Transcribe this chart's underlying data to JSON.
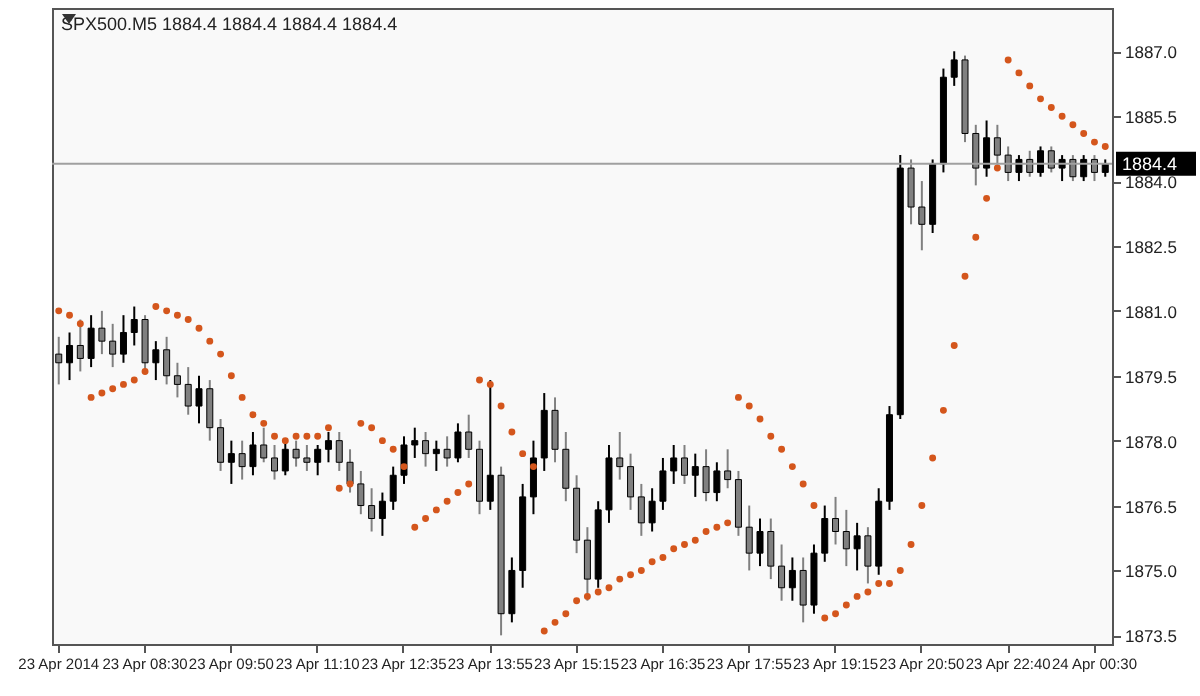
{
  "chart_data": {
    "type": "candlestick",
    "title": "SPX500.M5 1884.4 1884.4 1884.4 1884.4",
    "categories": [
      "23 Apr 2014",
      null,
      null,
      null,
      null,
      null,
      null,
      null,
      "23 Apr 08:30",
      null,
      null,
      null,
      null,
      null,
      null,
      null,
      "23 Apr 09:50",
      null,
      null,
      null,
      null,
      null,
      null,
      null,
      "23 Apr 11:10",
      null,
      null,
      null,
      null,
      null,
      null,
      null,
      "23 Apr 12:35",
      null,
      null,
      null,
      null,
      null,
      null,
      null,
      "23 Apr 13:55",
      null,
      null,
      null,
      null,
      null,
      null,
      null,
      "23 Apr 15:15",
      null,
      null,
      null,
      null,
      null,
      null,
      null,
      "23 Apr 16:35",
      null,
      null,
      null,
      null,
      null,
      null,
      null,
      "23 Apr 17:55",
      null,
      null,
      null,
      null,
      null,
      null,
      null,
      "23 Apr 19:15",
      null,
      null,
      null,
      null,
      null,
      null,
      null,
      "23 Apr 20:50",
      null,
      null,
      null,
      null,
      null,
      null,
      null,
      "23 Apr 22:40",
      null,
      null,
      null,
      null,
      null,
      null,
      null,
      "24 Apr 00:30",
      null
    ],
    "ohlc": [
      [
        1880.0,
        1880.4,
        1879.3,
        1879.8
      ],
      [
        1879.8,
        1880.5,
        1879.4,
        1880.2
      ],
      [
        1880.2,
        1880.8,
        1879.6,
        1879.9
      ],
      [
        1879.9,
        1880.9,
        1879.7,
        1880.6
      ],
      [
        1880.6,
        1881.0,
        1880.0,
        1880.3
      ],
      [
        1880.3,
        1880.7,
        1879.7,
        1880.0
      ],
      [
        1880.0,
        1880.9,
        1879.8,
        1880.5
      ],
      [
        1880.5,
        1881.1,
        1880.2,
        1880.8
      ],
      [
        1880.8,
        1880.9,
        1879.6,
        1879.8
      ],
      [
        1879.8,
        1880.3,
        1879.4,
        1880.1
      ],
      [
        1880.1,
        1880.4,
        1879.3,
        1879.5
      ],
      [
        1879.5,
        1879.8,
        1879.0,
        1879.3
      ],
      [
        1879.3,
        1879.7,
        1878.6,
        1878.8
      ],
      [
        1878.8,
        1879.5,
        1878.4,
        1879.2
      ],
      [
        1879.2,
        1879.4,
        1878.0,
        1878.3
      ],
      [
        1878.3,
        1878.5,
        1877.3,
        1877.5
      ],
      [
        1877.5,
        1878.0,
        1877.0,
        1877.7
      ],
      [
        1877.7,
        1878.0,
        1877.1,
        1877.4
      ],
      [
        1877.4,
        1878.2,
        1877.2,
        1877.9
      ],
      [
        1877.9,
        1878.3,
        1877.5,
        1877.6
      ],
      [
        1877.6,
        1877.9,
        1877.1,
        1877.3
      ],
      [
        1877.3,
        1878.0,
        1877.2,
        1877.8
      ],
      [
        1877.8,
        1878.0,
        1877.4,
        1877.6
      ],
      [
        1877.6,
        1877.9,
        1877.3,
        1877.5
      ],
      [
        1877.5,
        1877.9,
        1877.2,
        1877.8
      ],
      [
        1877.8,
        1878.2,
        1877.5,
        1878.0
      ],
      [
        1878.0,
        1878.2,
        1877.3,
        1877.5
      ],
      [
        1877.5,
        1877.8,
        1876.8,
        1877.0
      ],
      [
        1877.0,
        1877.3,
        1876.3,
        1876.5
      ],
      [
        1876.5,
        1876.9,
        1875.9,
        1876.2
      ],
      [
        1876.2,
        1876.8,
        1875.8,
        1876.6
      ],
      [
        1876.6,
        1877.4,
        1876.4,
        1877.2
      ],
      [
        1877.2,
        1878.1,
        1877.0,
        1877.9
      ],
      [
        1877.9,
        1878.3,
        1877.6,
        1878.0
      ],
      [
        1878.0,
        1878.2,
        1877.4,
        1877.7
      ],
      [
        1877.7,
        1878.0,
        1877.3,
        1877.8
      ],
      [
        1877.8,
        1878.1,
        1877.4,
        1877.6
      ],
      [
        1877.6,
        1878.4,
        1877.5,
        1878.2
      ],
      [
        1878.2,
        1878.6,
        1877.6,
        1877.8
      ],
      [
        1877.8,
        1878.0,
        1876.3,
        1876.6
      ],
      [
        1876.6,
        1879.4,
        1876.4,
        1877.2
      ],
      [
        1877.2,
        1877.4,
        1873.5,
        1874.0
      ],
      [
        1874.0,
        1875.3,
        1873.8,
        1875.0
      ],
      [
        1875.0,
        1877.0,
        1874.6,
        1876.7
      ],
      [
        1876.7,
        1878.0,
        1876.3,
        1877.6
      ],
      [
        1877.6,
        1879.1,
        1877.3,
        1878.7
      ],
      [
        1878.7,
        1879.0,
        1877.5,
        1877.8
      ],
      [
        1877.8,
        1878.2,
        1876.6,
        1876.9
      ],
      [
        1876.9,
        1877.2,
        1875.4,
        1875.7
      ],
      [
        1875.7,
        1876.0,
        1874.3,
        1874.8
      ],
      [
        1874.8,
        1876.6,
        1874.6,
        1876.4
      ],
      [
        1876.4,
        1877.9,
        1876.1,
        1877.6
      ],
      [
        1877.6,
        1878.2,
        1877.1,
        1877.4
      ],
      [
        1877.4,
        1877.7,
        1876.4,
        1876.7
      ],
      [
        1876.7,
        1877.0,
        1875.8,
        1876.1
      ],
      [
        1876.1,
        1876.9,
        1875.9,
        1876.6
      ],
      [
        1876.6,
        1877.6,
        1876.4,
        1877.3
      ],
      [
        1877.3,
        1877.9,
        1877.0,
        1877.6
      ],
      [
        1877.6,
        1877.9,
        1877.0,
        1877.2
      ],
      [
        1877.2,
        1877.7,
        1876.7,
        1877.4
      ],
      [
        1877.4,
        1877.8,
        1876.6,
        1876.8
      ],
      [
        1876.8,
        1877.5,
        1876.6,
        1877.3
      ],
      [
        1877.3,
        1877.8,
        1876.9,
        1877.1
      ],
      [
        1877.1,
        1877.3,
        1875.8,
        1876.0
      ],
      [
        1876.0,
        1876.5,
        1875.0,
        1875.4
      ],
      [
        1875.4,
        1876.2,
        1875.1,
        1875.9
      ],
      [
        1875.9,
        1876.2,
        1874.8,
        1875.1
      ],
      [
        1875.1,
        1875.6,
        1874.3,
        1874.6
      ],
      [
        1874.6,
        1875.3,
        1874.3,
        1875.0
      ],
      [
        1875.0,
        1875.3,
        1873.8,
        1874.2
      ],
      [
        1874.2,
        1875.6,
        1874.0,
        1875.4
      ],
      [
        1875.4,
        1876.5,
        1875.2,
        1876.2
      ],
      [
        1876.2,
        1876.7,
        1875.6,
        1875.9
      ],
      [
        1875.9,
        1876.4,
        1875.1,
        1875.5
      ],
      [
        1875.5,
        1876.1,
        1875.0,
        1875.8
      ],
      [
        1875.8,
        1876.0,
        1874.7,
        1875.1
      ],
      [
        1875.1,
        1876.9,
        1874.9,
        1876.6
      ],
      [
        1876.6,
        1878.8,
        1876.4,
        1878.6
      ],
      [
        1878.6,
        1884.6,
        1878.5,
        1884.3
      ],
      [
        1884.3,
        1884.5,
        1883.0,
        1883.4
      ],
      [
        1883.4,
        1884.0,
        1882.4,
        1883.0
      ],
      [
        1883.0,
        1884.5,
        1882.8,
        1884.4
      ],
      [
        1884.4,
        1886.6,
        1884.2,
        1886.4
      ],
      [
        1886.4,
        1887.0,
        1886.2,
        1886.8
      ],
      [
        1886.8,
        1886.9,
        1884.9,
        1885.1
      ],
      [
        1885.1,
        1885.3,
        1883.9,
        1884.3
      ],
      [
        1884.3,
        1885.4,
        1884.1,
        1885.0
      ],
      [
        1885.0,
        1885.3,
        1884.3,
        1884.6
      ],
      [
        1884.6,
        1884.8,
        1884.0,
        1884.2
      ],
      [
        1884.2,
        1884.6,
        1884.0,
        1884.5
      ],
      [
        1884.5,
        1884.7,
        1884.1,
        1884.2
      ],
      [
        1884.2,
        1884.8,
        1884.1,
        1884.7
      ],
      [
        1884.7,
        1884.8,
        1884.2,
        1884.3
      ],
      [
        1884.3,
        1884.6,
        1884.0,
        1884.5
      ],
      [
        1884.5,
        1884.6,
        1884.0,
        1884.1
      ],
      [
        1884.1,
        1884.6,
        1884.0,
        1884.5
      ],
      [
        1884.5,
        1884.6,
        1884.0,
        1884.2
      ],
      [
        1884.2,
        1884.5,
        1884.1,
        1884.4
      ]
    ],
    "colors": [
      "#808080",
      "#000000",
      "#808080",
      "#000000",
      "#808080",
      "#808080",
      "#000000",
      "#000000",
      "#808080",
      "#000000",
      "#808080",
      "#808080",
      "#808080",
      "#000000",
      "#808080",
      "#808080",
      "#000000",
      "#808080",
      "#000000",
      "#808080",
      "#808080",
      "#000000",
      "#808080",
      "#808080",
      "#000000",
      "#000000",
      "#808080",
      "#808080",
      "#808080",
      "#808080",
      "#000000",
      "#000000",
      "#000000",
      "#000000",
      "#808080",
      "#000000",
      "#808080",
      "#000000",
      "#808080",
      "#808080",
      "#000000",
      "#808080",
      "#000000",
      "#000000",
      "#000000",
      "#000000",
      "#808080",
      "#808080",
      "#808080",
      "#808080",
      "#000000",
      "#000000",
      "#808080",
      "#808080",
      "#808080",
      "#000000",
      "#000000",
      "#000000",
      "#808080",
      "#000000",
      "#808080",
      "#000000",
      "#808080",
      "#808080",
      "#808080",
      "#000000",
      "#808080",
      "#808080",
      "#000000",
      "#808080",
      "#000000",
      "#000000",
      "#808080",
      "#808080",
      "#000000",
      "#808080",
      "#000000",
      "#000000",
      "#000000",
      "#808080",
      "#808080",
      "#000000",
      "#000000",
      "#000000",
      "#808080",
      "#808080",
      "#000000",
      "#808080",
      "#808080",
      "#000000",
      "#808080",
      "#000000",
      "#808080",
      "#000000",
      "#808080",
      "#000000",
      "#808080",
      "#000000"
    ],
    "series": [
      {
        "type": "scatter",
        "color": "#d4561c",
        "values": [
          1881.0,
          1880.9,
          1880.7,
          1879.0,
          1879.1,
          1879.2,
          1879.3,
          1879.4,
          1879.6,
          1881.1,
          1881.0,
          1880.9,
          1880.8,
          1880.6,
          1880.3,
          1880.0,
          1879.5,
          1879.0,
          1878.6,
          1878.4,
          1878.1,
          1878.0,
          1878.1,
          1878.1,
          1878.1,
          1878.3,
          1876.9,
          1877.0,
          1878.4,
          1878.3,
          1878.0,
          1877.8,
          1877.4,
          1876.0,
          1876.2,
          1876.4,
          1876.6,
          1876.8,
          1877.0,
          1879.4,
          1879.3,
          1878.8,
          1878.2,
          1877.7,
          1877.4,
          1873.6,
          1873.8,
          1874.0,
          1874.3,
          1874.4,
          1874.5,
          1874.6,
          1874.8,
          1874.9,
          1875.0,
          1875.2,
          1875.3,
          1875.5,
          1875.6,
          1875.7,
          1875.9,
          1876.0,
          1876.1,
          1879.0,
          1878.8,
          1878.5,
          1878.1,
          1877.8,
          1877.4,
          1877.0,
          1876.5,
          1873.9,
          1874.0,
          1874.2,
          1874.4,
          1874.5,
          1874.7,
          1874.7,
          1875.0,
          1875.6,
          1876.5,
          1877.6,
          1878.7,
          1880.2,
          1881.8,
          1882.7,
          1883.6,
          1884.3,
          1886.8,
          1886.5,
          1886.2,
          1885.9,
          1885.7,
          1885.5,
          1885.3,
          1885.1,
          1884.9,
          1884.8
        ]
      }
    ],
    "ylim": [
      1873.3,
      1888.0
    ],
    "yticks": [
      {
        "value": 1873.5,
        "label": "1873.5"
      },
      {
        "value": 1875,
        "label": "1875.0"
      },
      {
        "value": 1876.5,
        "label": "1876.5"
      },
      {
        "value": 1878,
        "label": "1878.0"
      },
      {
        "value": 1879.5,
        "label": "1879.5"
      },
      {
        "value": 1881,
        "label": "1881.0"
      },
      {
        "value": 1882.5,
        "label": "1882.5"
      },
      {
        "value": 1884,
        "label": "1884.0"
      },
      {
        "value": 1885.5,
        "label": "1885.5"
      },
      {
        "value": 1887,
        "label": "1887.0"
      }
    ],
    "ref_lines": [
      {
        "axis": "y",
        "value": 1884.4,
        "label": "1884.4",
        "color": "#a0a0a0"
      }
    ],
    "marker": "circle"
  }
}
